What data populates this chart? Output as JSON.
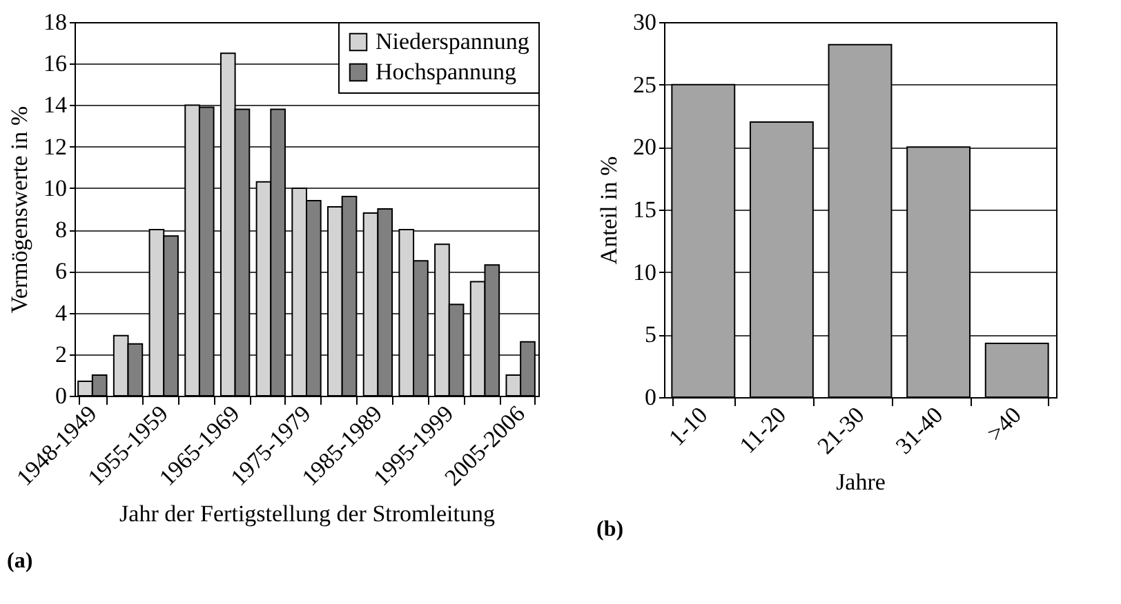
{
  "chart_data": [
    {
      "type": "bar",
      "categories": [
        "1948-1949",
        null,
        "1955-1959",
        null,
        "1965-1969",
        null,
        "1975-1979",
        null,
        "1985-1989",
        null,
        "1995-1999",
        null,
        "2005-2006"
      ],
      "series": [
        {
          "name": "Niederspannung",
          "color": "#d3d3d3",
          "values": [
            0.7,
            2.9,
            8.0,
            14.0,
            16.5,
            10.3,
            10.0,
            9.1,
            8.8,
            8.0,
            7.3,
            5.5,
            1.0
          ]
        },
        {
          "name": "Hochspannung",
          "color": "#808080",
          "values": [
            1.0,
            2.5,
            7.7,
            13.9,
            13.8,
            13.8,
            9.4,
            9.6,
            9.0,
            6.5,
            4.4,
            6.3,
            2.6
          ]
        }
      ],
      "ylim": [
        0,
        18
      ],
      "yticks": [
        0,
        2,
        4,
        6,
        8,
        10,
        12,
        14,
        16,
        18
      ],
      "ylabel": "Vermögenswerte in %",
      "xlabel": "Jahr der Fertigstellung der Stromleitung",
      "grid": "y",
      "legend": "top right",
      "annotations": [
        "(a)"
      ]
    },
    {
      "type": "bar",
      "categories": [
        "1-10",
        "11-20",
        "21-30",
        "31-40",
        ">40"
      ],
      "series": [
        {
          "color": "#a4a4a4",
          "values": [
            25,
            22,
            28.2,
            20,
            4.3
          ]
        }
      ],
      "ylim": [
        0,
        30
      ],
      "yticks": [
        0,
        5,
        10,
        15,
        20,
        25,
        30
      ],
      "ylabel": "Anteil in %",
      "xlabel": "Jahre",
      "grid": "y",
      "annotations": [
        "(b)"
      ]
    }
  ]
}
